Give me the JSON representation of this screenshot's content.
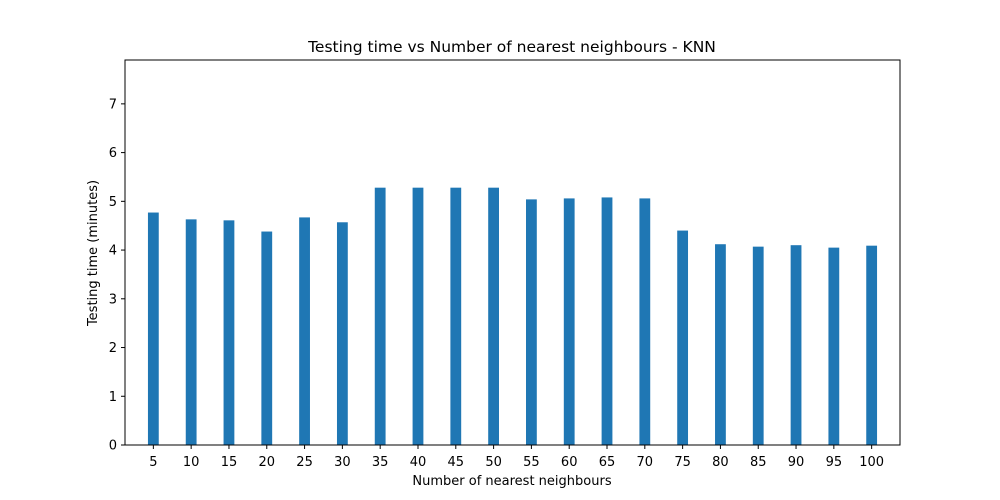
{
  "chart_data": {
    "type": "bar",
    "title": "Testing time vs Number of nearest neighbours - KNN",
    "xlabel": "Number of nearest neighbours",
    "ylabel": "Testing time (minutes)",
    "categories": [
      "5",
      "10",
      "15",
      "20",
      "25",
      "30",
      "35",
      "40",
      "45",
      "50",
      "55",
      "60",
      "65",
      "70",
      "75",
      "80",
      "85",
      "90",
      "95",
      "100"
    ],
    "values": [
      4.77,
      4.63,
      4.61,
      4.38,
      4.67,
      4.57,
      5.28,
      5.28,
      5.28,
      5.28,
      5.04,
      5.06,
      5.08,
      5.06,
      4.4,
      4.12,
      4.07,
      4.1,
      4.05,
      4.09
    ],
    "ylim": [
      0,
      7.9
    ],
    "yticks": [
      "0",
      "1",
      "2",
      "3",
      "4",
      "5",
      "6",
      "7"
    ],
    "grid": false,
    "legend": "none",
    "bar_color": "#1f77b4"
  }
}
